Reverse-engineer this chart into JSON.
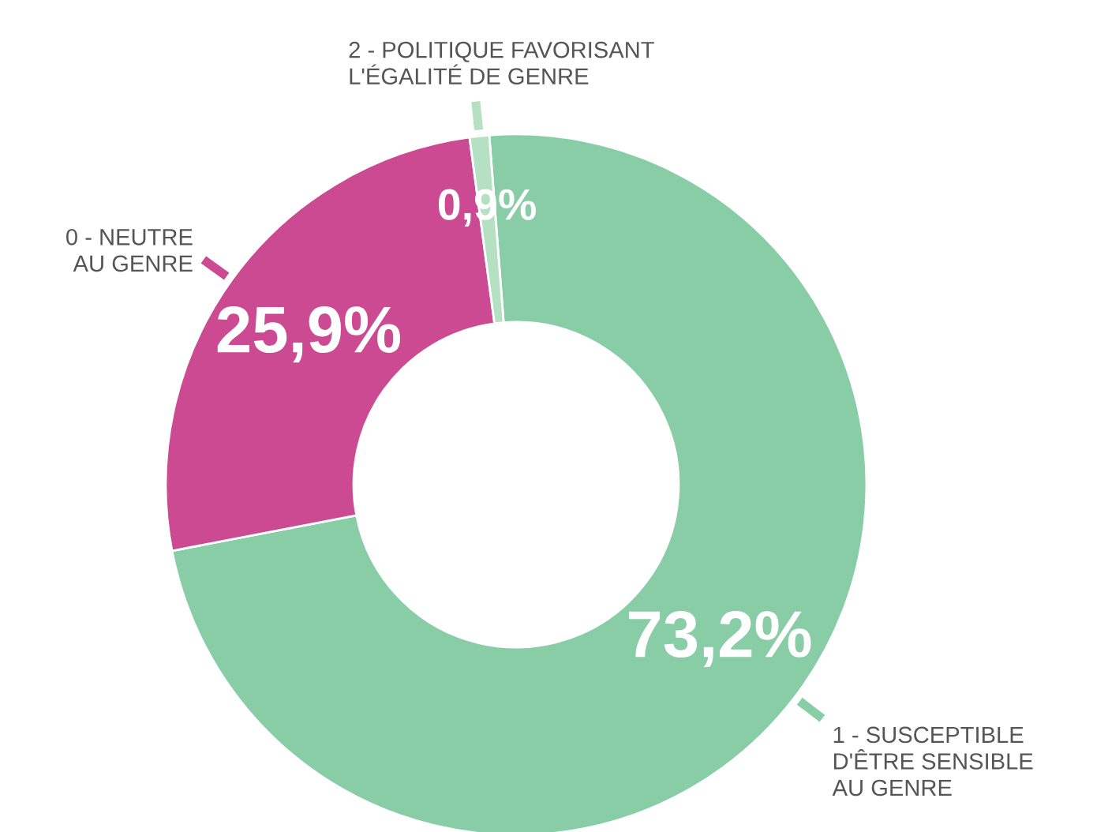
{
  "chart_data": {
    "type": "donut",
    "categories": [
      "1 - SUSCEPTIBLE\nD'ÊTRE SENSIBLE\nAU GENRE",
      "0 - NEUTRE\nAU GENRE",
      "2 - POLITIQUE FAVORISANT\nL'ÉGALITÉ DE GENRE"
    ],
    "values": [
      73.2,
      25.9,
      0.9
    ],
    "colors": [
      "#88cda5",
      "#cc4a92",
      "#b6e0c2"
    ],
    "value_labels": [
      "73,2%",
      "25,9%",
      "0,9%"
    ]
  }
}
